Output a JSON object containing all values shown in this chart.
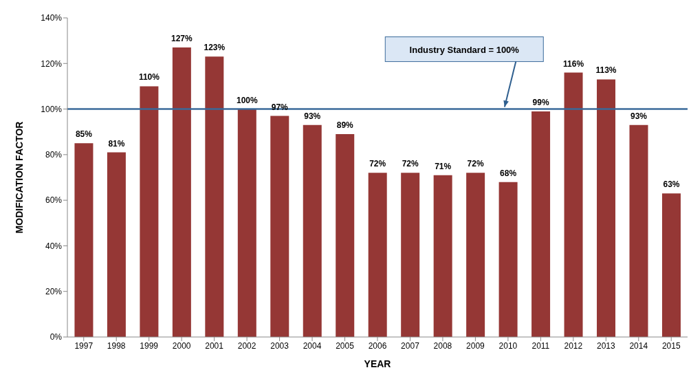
{
  "chart_data": {
    "type": "bar",
    "xlabel": "YEAR",
    "ylabel": "MODIFICATION FACTOR",
    "categories": [
      "1997",
      "1998",
      "1999",
      "2000",
      "2001",
      "2002",
      "2003",
      "2004",
      "2005",
      "2006",
      "2007",
      "2008",
      "2009",
      "2010",
      "2011",
      "2012",
      "2013",
      "2014",
      "2015"
    ],
    "values": [
      85,
      81,
      110,
      127,
      123,
      100,
      97,
      93,
      89,
      72,
      72,
      71,
      72,
      68,
      99,
      116,
      113,
      93,
      63
    ],
    "value_labels": [
      "85%",
      "81%",
      "110%",
      "127%",
      "123%",
      "100%",
      "97%",
      "93%",
      "89%",
      "72%",
      "72%",
      "71%",
      "72%",
      "68%",
      "99%",
      "116%",
      "113%",
      "93%",
      "63%"
    ],
    "color": "#953735",
    "ylim": [
      0,
      140
    ],
    "yticks": [
      {
        "value": 0,
        "label": "0%"
      },
      {
        "value": 20,
        "label": "20%"
      },
      {
        "value": 40,
        "label": "40%"
      },
      {
        "value": 60,
        "label": "60%"
      },
      {
        "value": 80,
        "label": "80%"
      },
      {
        "value": 100,
        "label": "100%"
      },
      {
        "value": 120,
        "label": "120%"
      },
      {
        "value": 140,
        "label": "140%"
      }
    ],
    "ref_lines": [
      {
        "axis": "y",
        "value": 100,
        "label": "Industry Standard = 100%",
        "color": "#3a6a9a"
      }
    ],
    "grid": false,
    "legend": false
  }
}
